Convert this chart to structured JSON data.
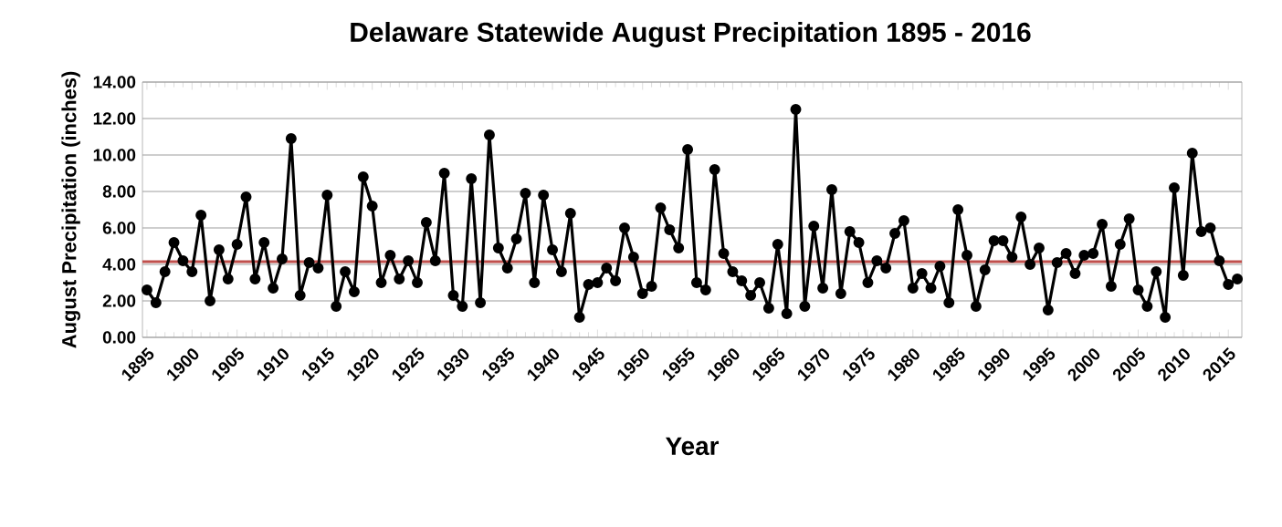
{
  "chart_data": {
    "type": "line",
    "title": "Delaware Statewide August Precipitation 1895 - 2016",
    "xlabel": "Year",
    "ylabel": "August Precipitation (inches)",
    "x": [
      1895,
      1896,
      1897,
      1898,
      1899,
      1900,
      1901,
      1902,
      1903,
      1904,
      1905,
      1906,
      1907,
      1908,
      1909,
      1910,
      1911,
      1912,
      1913,
      1914,
      1915,
      1916,
      1917,
      1918,
      1919,
      1920,
      1921,
      1922,
      1923,
      1924,
      1925,
      1926,
      1927,
      1928,
      1929,
      1930,
      1931,
      1932,
      1933,
      1934,
      1935,
      1936,
      1937,
      1938,
      1939,
      1940,
      1941,
      1942,
      1943,
      1944,
      1945,
      1946,
      1947,
      1948,
      1949,
      1950,
      1951,
      1952,
      1953,
      1954,
      1955,
      1956,
      1957,
      1958,
      1959,
      1960,
      1961,
      1962,
      1963,
      1964,
      1965,
      1966,
      1967,
      1968,
      1969,
      1970,
      1971,
      1972,
      1973,
      1974,
      1975,
      1976,
      1977,
      1978,
      1979,
      1980,
      1981,
      1982,
      1983,
      1984,
      1985,
      1986,
      1987,
      1988,
      1989,
      1990,
      1991,
      1992,
      1993,
      1994,
      1995,
      1996,
      1997,
      1998,
      1999,
      2000,
      2001,
      2002,
      2003,
      2004,
      2005,
      2006,
      2007,
      2008,
      2009,
      2010,
      2011,
      2012,
      2013,
      2014,
      2015,
      2016
    ],
    "series": [
      {
        "color": "#000000",
        "values": [
          2.6,
          1.9,
          3.6,
          5.2,
          4.2,
          3.6,
          6.7,
          2.0,
          4.8,
          3.2,
          5.1,
          7.7,
          3.2,
          5.2,
          2.7,
          4.3,
          10.9,
          2.3,
          4.1,
          3.8,
          7.8,
          1.7,
          3.6,
          2.5,
          8.8,
          7.2,
          3.0,
          4.5,
          3.2,
          4.2,
          3.0,
          6.3,
          4.2,
          9.0,
          2.3,
          1.7,
          8.7,
          1.9,
          11.1,
          4.9,
          3.8,
          5.4,
          7.9,
          3.0,
          7.8,
          4.8,
          3.6,
          6.8,
          1.1,
          2.9,
          3.0,
          3.8,
          3.1,
          6.0,
          4.4,
          2.4,
          2.8,
          7.1,
          5.9,
          4.9,
          10.3,
          3.0,
          2.6,
          9.2,
          4.6,
          3.6,
          3.1,
          2.3,
          3.0,
          1.6,
          5.1,
          1.3,
          12.5,
          1.7,
          6.1,
          2.7,
          8.1,
          2.4,
          5.8,
          5.2,
          3.0,
          4.2,
          3.8,
          5.7,
          6.4,
          2.7,
          3.5,
          2.7,
          3.9,
          1.9,
          7.0,
          4.5,
          1.7,
          3.7,
          5.3,
          5.3,
          4.4,
          6.6,
          4.0,
          4.9,
          1.5,
          4.1,
          4.6,
          3.5,
          4.5,
          4.6,
          6.2,
          2.8,
          5.1,
          6.5,
          2.6,
          1.7,
          3.6,
          1.1,
          8.2,
          3.4,
          10.1,
          5.8,
          6.0,
          4.2,
          2.9,
          3.2
        ]
      }
    ],
    "xlim": [
      1894.5,
      2016.5
    ],
    "xticks": [
      1895,
      1900,
      1905,
      1910,
      1915,
      1920,
      1925,
      1930,
      1935,
      1940,
      1945,
      1950,
      1955,
      1960,
      1965,
      1970,
      1975,
      1980,
      1985,
      1990,
      1995,
      2000,
      2005,
      2010,
      2015
    ],
    "ylim": [
      0,
      14
    ],
    "yticks": [
      {
        "value": 0,
        "label": "0.00"
      },
      {
        "value": 2,
        "label": "2.00"
      },
      {
        "value": 4,
        "label": "4.00"
      },
      {
        "value": 6,
        "label": "6.00"
      },
      {
        "value": 8,
        "label": "8.00"
      },
      {
        "value": 10,
        "label": "10.00"
      },
      {
        "value": 12,
        "label": "12.00"
      },
      {
        "value": 14,
        "label": "14.00"
      }
    ],
    "ref_lines": [
      {
        "axis": "y",
        "value": 4.15,
        "color": "#c0504d"
      }
    ],
    "grid": "y",
    "marker": "circle",
    "line_style": "solid"
  }
}
